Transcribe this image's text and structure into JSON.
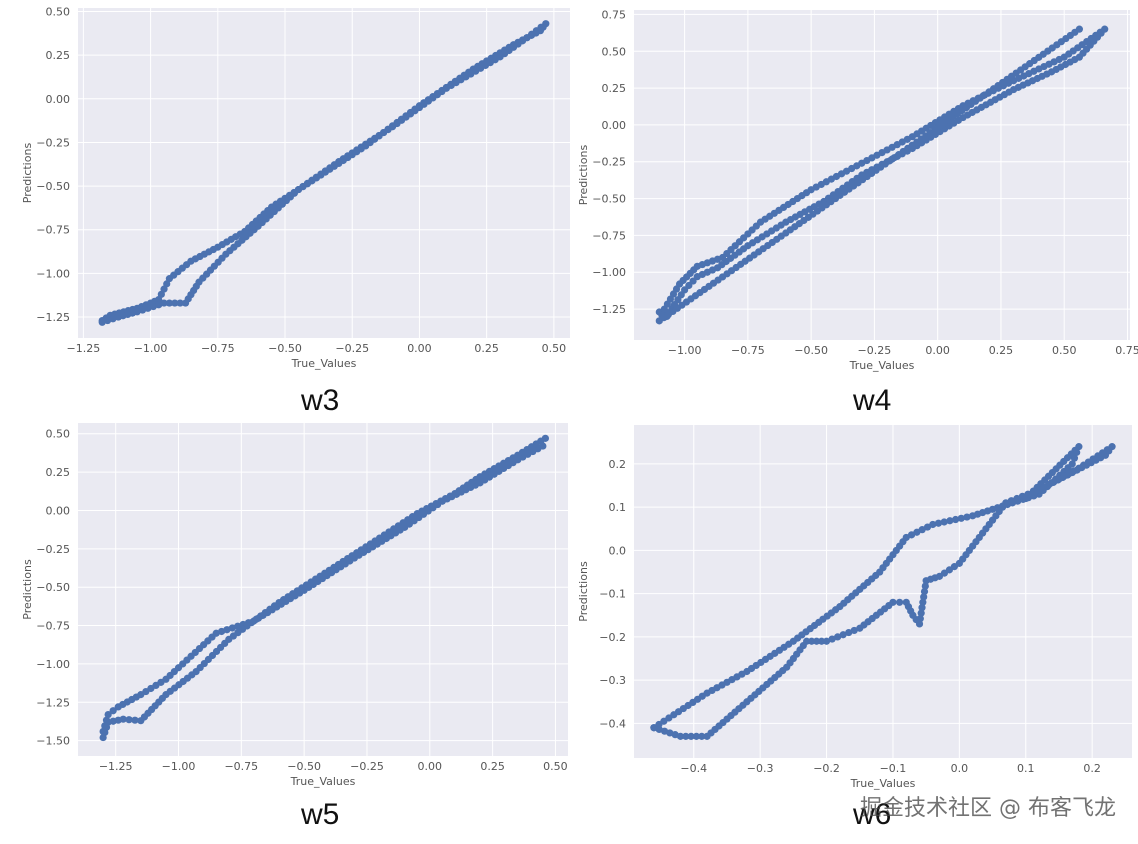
{
  "chart_data": [
    {
      "type": "scatter",
      "caption": "w3",
      "xlabel": "True_Values",
      "ylabel": "Predictions",
      "xlim": [
        -1.27,
        0.56
      ],
      "ylim": [
        -1.37,
        0.52
      ],
      "xticks": [
        -1.25,
        -1.0,
        -0.75,
        -0.5,
        -0.25,
        0.0,
        0.25,
        0.5
      ],
      "yticks": [
        -1.25,
        -1.0,
        -0.75,
        -0.5,
        -0.25,
        0.0,
        0.25,
        0.5
      ],
      "xticklabels": [
        "−1.25",
        "−1.00",
        "−0.75",
        "−0.50",
        "−0.25",
        "0.00",
        "0.25",
        "0.50"
      ],
      "yticklabels": [
        "−1.25",
        "−1.00",
        "−0.75",
        "−0.50",
        "−0.25",
        "0.00",
        "0.25",
        "0.50"
      ],
      "grid": true,
      "color": "#4c72b0",
      "path": [
        [
          -1.18,
          -1.27
        ],
        [
          -1.15,
          -1.24
        ],
        [
          -1.1,
          -1.22
        ],
        [
          -1.05,
          -1.2
        ],
        [
          -1.0,
          -1.17
        ],
        [
          -0.97,
          -1.15
        ],
        [
          -0.93,
          -1.03
        ],
        [
          -0.85,
          -0.93
        ],
        [
          -0.75,
          -0.85
        ],
        [
          -0.65,
          -0.76
        ],
        [
          -0.55,
          -0.62
        ],
        [
          -0.4,
          -0.47
        ],
        [
          -0.2,
          -0.27
        ],
        [
          0.0,
          -0.04
        ],
        [
          0.2,
          0.17
        ],
        [
          0.35,
          0.31
        ],
        [
          0.45,
          0.39
        ],
        [
          0.47,
          0.43
        ],
        [
          0.4,
          0.35
        ],
        [
          0.3,
          0.24
        ],
        [
          0.1,
          0.06
        ],
        [
          -0.1,
          -0.16
        ],
        [
          -0.3,
          -0.36
        ],
        [
          -0.45,
          -0.52
        ],
        [
          -0.6,
          -0.73
        ],
        [
          -0.72,
          -0.89
        ],
        [
          -0.82,
          -1.05
        ],
        [
          -0.87,
          -1.17
        ],
        [
          -0.95,
          -1.17
        ],
        [
          -1.05,
          -1.22
        ],
        [
          -1.12,
          -1.25
        ],
        [
          -1.18,
          -1.28
        ]
      ]
    },
    {
      "type": "scatter",
      "caption": "w4",
      "xlabel": "True_Values",
      "ylabel": "Predictions",
      "xlim": [
        -1.2,
        0.76
      ],
      "ylim": [
        -1.46,
        0.78
      ],
      "xticks": [
        -1.0,
        -0.75,
        -0.5,
        -0.25,
        0.0,
        0.25,
        0.5,
        0.75
      ],
      "yticks": [
        -1.25,
        -1.0,
        -0.75,
        -0.5,
        -0.25,
        0.0,
        0.25,
        0.5,
        0.75
      ],
      "xticklabels": [
        "−1.00",
        "−0.75",
        "−0.50",
        "−0.25",
        "0.00",
        "0.25",
        "0.50",
        "0.75"
      ],
      "yticklabels": [
        "−1.25",
        "−1.00",
        "−0.75",
        "−0.50",
        "−0.25",
        "0.00",
        "0.25",
        "0.50",
        "0.75"
      ],
      "grid": true,
      "color": "#4c72b0",
      "path": [
        [
          -1.1,
          -1.27
        ],
        [
          -1.07,
          -1.3
        ],
        [
          -1.04,
          -1.22
        ],
        [
          -1.0,
          -1.12
        ],
        [
          -0.95,
          -1.03
        ],
        [
          -0.87,
          -0.97
        ],
        [
          -0.75,
          -0.82
        ],
        [
          -0.6,
          -0.66
        ],
        [
          -0.45,
          -0.52
        ],
        [
          -0.3,
          -0.34
        ],
        [
          -0.1,
          -0.16
        ],
        [
          0.1,
          0.05
        ],
        [
          0.3,
          0.24
        ],
        [
          0.45,
          0.36
        ],
        [
          0.56,
          0.46
        ],
        [
          0.66,
          0.65
        ],
        [
          0.5,
          0.46
        ],
        [
          0.3,
          0.3
        ],
        [
          0.1,
          0.13
        ],
        [
          -0.1,
          -0.08
        ],
        [
          -0.3,
          -0.26
        ],
        [
          -0.5,
          -0.44
        ],
        [
          -0.7,
          -0.66
        ],
        [
          -0.85,
          -0.9
        ],
        [
          -0.95,
          -0.96
        ],
        [
          -1.02,
          -1.08
        ],
        [
          -1.08,
          -1.25
        ],
        [
          -1.1,
          -1.33
        ],
        [
          0.56,
          0.65
        ]
      ]
    },
    {
      "type": "scatter",
      "caption": "w5",
      "xlabel": "True_Values",
      "ylabel": "Predictions",
      "xlim": [
        -1.4,
        0.55
      ],
      "ylim": [
        -1.6,
        0.57
      ],
      "xticks": [
        -1.25,
        -1.0,
        -0.75,
        -0.5,
        -0.25,
        0.0,
        0.25,
        0.5
      ],
      "yticks": [
        -1.5,
        -1.25,
        -1.0,
        -0.75,
        -0.5,
        -0.25,
        0.0,
        0.25,
        0.5
      ],
      "xticklabels": [
        "−1.25",
        "−1.00",
        "−0.75",
        "−0.50",
        "−0.25",
        "0.00",
        "0.25",
        "0.50"
      ],
      "yticklabels": [
        "−1.50",
        "−1.25",
        "−1.00",
        "−0.75",
        "−0.50",
        "−0.25",
        "0.00",
        "0.25",
        "0.50"
      ],
      "grid": true,
      "color": "#4c72b0",
      "path": [
        [
          -1.3,
          -1.44
        ],
        [
          -1.28,
          -1.33
        ],
        [
          -1.24,
          -1.28
        ],
        [
          -1.15,
          -1.2
        ],
        [
          -1.05,
          -1.1
        ],
        [
          -0.95,
          -0.95
        ],
        [
          -0.85,
          -0.8
        ],
        [
          -0.7,
          -0.72
        ],
        [
          -0.5,
          -0.52
        ],
        [
          -0.3,
          -0.31
        ],
        [
          -0.1,
          -0.11
        ],
        [
          0.05,
          0.06
        ],
        [
          0.2,
          0.18
        ],
        [
          0.35,
          0.33
        ],
        [
          0.45,
          0.42
        ],
        [
          0.46,
          0.47
        ],
        [
          0.35,
          0.36
        ],
        [
          0.2,
          0.22
        ],
        [
          0.1,
          0.11
        ],
        [
          -0.05,
          -0.02
        ],
        [
          -0.2,
          -0.18
        ],
        [
          -0.4,
          -0.39
        ],
        [
          -0.6,
          -0.6
        ],
        [
          -0.8,
          -0.84
        ],
        [
          -0.93,
          -1.05
        ],
        [
          -1.05,
          -1.2
        ],
        [
          -1.15,
          -1.37
        ],
        [
          -1.22,
          -1.36
        ],
        [
          -1.28,
          -1.38
        ],
        [
          -1.3,
          -1.48
        ]
      ]
    },
    {
      "type": "scatter",
      "caption": "w6",
      "xlabel": "True_Values",
      "ylabel": "Predictions",
      "xlim": [
        -0.49,
        0.26
      ],
      "ylim": [
        -0.48,
        0.29
      ],
      "xticks": [
        -0.4,
        -0.3,
        -0.2,
        -0.1,
        0.0,
        0.1,
        0.2
      ],
      "yticks": [
        -0.4,
        -0.3,
        -0.2,
        -0.1,
        0.0,
        0.1,
        0.2
      ],
      "xticklabels": [
        "−0.4",
        "−0.3",
        "−0.2",
        "−0.1",
        "0.0",
        "0.1",
        "0.2"
      ],
      "yticklabels": [
        "−0.4",
        "−0.3",
        "−0.2",
        "−0.1",
        "0.0",
        "0.1",
        "0.2"
      ],
      "grid": true,
      "color": "#4c72b0",
      "path": [
        [
          -0.46,
          -0.41
        ],
        [
          -0.43,
          -0.38
        ],
        [
          -0.38,
          -0.33
        ],
        [
          -0.32,
          -0.28
        ],
        [
          -0.25,
          -0.21
        ],
        [
          -0.18,
          -0.13
        ],
        [
          -0.12,
          -0.05
        ],
        [
          -0.08,
          0.03
        ],
        [
          -0.04,
          0.06
        ],
        [
          0.02,
          0.08
        ],
        [
          0.08,
          0.11
        ],
        [
          0.12,
          0.13
        ],
        [
          0.17,
          0.2
        ],
        [
          0.18,
          0.24
        ],
        [
          0.14,
          0.18
        ],
        [
          0.1,
          0.12
        ],
        [
          0.12,
          0.14
        ],
        [
          0.17,
          0.18
        ],
        [
          0.22,
          0.22
        ],
        [
          0.23,
          0.24
        ],
        [
          0.18,
          0.19
        ],
        [
          0.12,
          0.14
        ],
        [
          0.07,
          0.11
        ],
        [
          0.03,
          0.03
        ],
        [
          0.0,
          -0.03
        ],
        [
          -0.03,
          -0.06
        ],
        [
          -0.05,
          -0.07
        ],
        [
          -0.06,
          -0.17
        ],
        [
          -0.07,
          -0.15
        ],
        [
          -0.08,
          -0.12
        ],
        [
          -0.1,
          -0.12
        ],
        [
          -0.15,
          -0.18
        ],
        [
          -0.2,
          -0.21
        ],
        [
          -0.23,
          -0.21
        ],
        [
          -0.26,
          -0.27
        ],
        [
          -0.32,
          -0.35
        ],
        [
          -0.38,
          -0.43
        ],
        [
          -0.42,
          -0.43
        ],
        [
          -0.46,
          -0.41
        ]
      ]
    }
  ],
  "watermark": "掘金技术社区 @ 布客飞龙"
}
